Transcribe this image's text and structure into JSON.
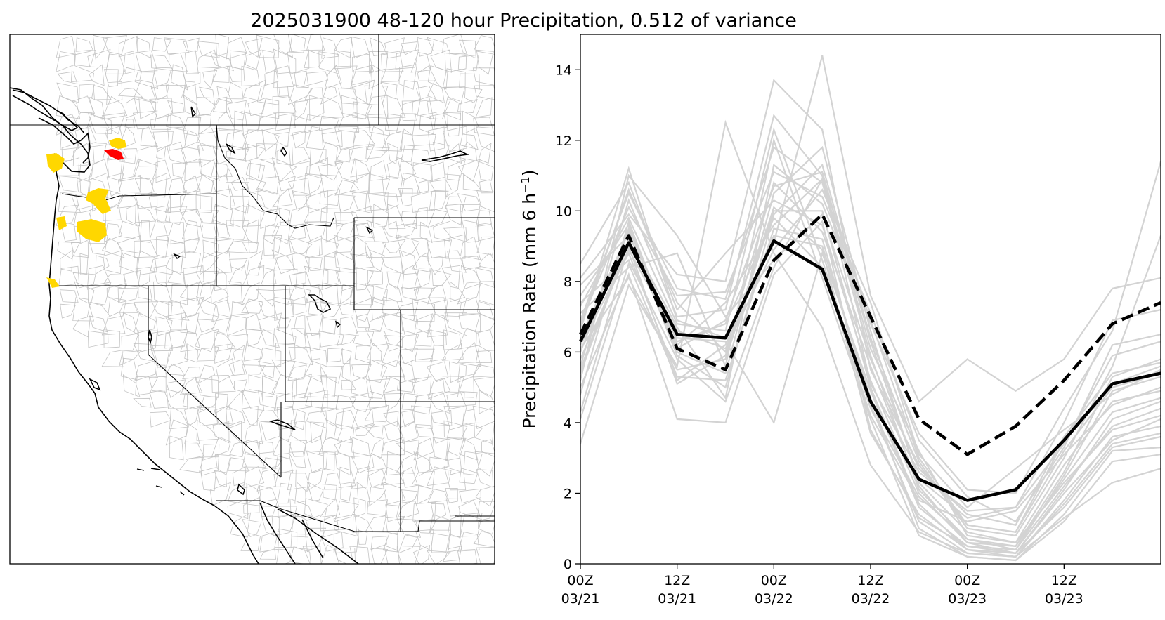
{
  "title": "2025031900 48-120 hour Precipitation, 0.512 of variance",
  "map": {
    "highlight_colors": {
      "gold": "#FFD700",
      "red": "#FF0000"
    }
  },
  "chart_data": {
    "type": "line",
    "ylabel": "Precipitation Rate (mm 6 h",
    "ylabel_superscript": "−1",
    "ylabel_suffix": ")",
    "ylim": [
      0,
      15
    ],
    "xlim": [
      0,
      18
    ],
    "yticks": [
      0,
      2,
      4,
      6,
      8,
      10,
      12,
      14
    ],
    "xticks": [
      {
        "x": 0,
        "line1": "00Z",
        "line2": "03/21"
      },
      {
        "x": 3,
        "line1": "12Z",
        "line2": "03/21"
      },
      {
        "x": 6,
        "line1": "00Z",
        "line2": "03/22"
      },
      {
        "x": 9,
        "line1": "12Z",
        "line2": "03/22"
      },
      {
        "x": 12,
        "line1": "00Z",
        "line2": "03/23"
      },
      {
        "x": 15,
        "line1": "12Z",
        "line2": "03/23"
      }
    ],
    "x": [
      0,
      1.5,
      3,
      4.5,
      6,
      7.5,
      9,
      10.5,
      12,
      13.5,
      15,
      16.5,
      18
    ],
    "series": [
      {
        "style": "solid",
        "color": "#000000",
        "values": [
          6.3,
          9.1,
          6.5,
          6.4,
          9.15,
          8.35,
          4.6,
          2.4,
          1.8,
          2.1,
          3.5,
          5.1,
          5.4
        ]
      },
      {
        "style": "dashed",
        "color": "#000000",
        "values": [
          6.5,
          9.3,
          6.1,
          5.5,
          8.6,
          9.9,
          7.0,
          4.1,
          3.1,
          3.9,
          5.2,
          6.8,
          7.4
        ]
      }
    ],
    "ensemble_color": "#d3d3d3",
    "ensemble": [
      [
        6.0,
        9.5,
        6.3,
        6.8,
        9.8,
        8.4,
        4.2,
        1.8,
        1.2,
        1.5,
        3.1,
        4.5,
        5.0
      ],
      [
        5.6,
        10.3,
        7.0,
        7.2,
        12.7,
        11.0,
        5.1,
        2.6,
        1.5,
        1.6,
        3.4,
        5.9,
        6.3
      ],
      [
        7.4,
        8.6,
        5.8,
        4.6,
        8.4,
        10.9,
        6.1,
        3.2,
        0.8,
        0.6,
        2.3,
        3.8,
        4.2
      ],
      [
        4.3,
        9.0,
        5.1,
        5.9,
        10.1,
        8.9,
        3.7,
        1.4,
        0.4,
        0.3,
        1.6,
        3.3,
        3.6
      ],
      [
        8.1,
        9.9,
        8.2,
        8.0,
        13.7,
        12.3,
        5.5,
        2.8,
        1.1,
        0.9,
        3.5,
        5.1,
        5.6
      ],
      [
        6.6,
        11.2,
        6.9,
        6.4,
        9.1,
        14.4,
        7.6,
        4.6,
        5.8,
        4.9,
        5.8,
        7.8,
        8.1
      ],
      [
        5.0,
        8.2,
        4.1,
        4.0,
        8.2,
        9.7,
        3.8,
        1.3,
        0.5,
        0.4,
        2.2,
        3.9,
        4.4
      ],
      [
        3.4,
        7.9,
        5.6,
        12.5,
        8.8,
        6.7,
        2.8,
        0.9,
        0.3,
        0.2,
        1.3,
        2.3,
        2.7
      ],
      [
        7.9,
        9.3,
        6.7,
        4.7,
        11.3,
        10.2,
        6.8,
        3.7,
        2.1,
        2.0,
        4.4,
        6.6,
        11.4
      ],
      [
        6.9,
        10.5,
        7.8,
        7.5,
        11.8,
        10.8,
        5.9,
        2.1,
        0.7,
        0.4,
        2.5,
        4.9,
        5.3
      ],
      [
        6.2,
        8.8,
        5.3,
        5.2,
        9.5,
        9.2,
        4.5,
        1.2,
        0.3,
        0.2,
        1.8,
        3.6,
        3.9
      ],
      [
        4.8,
        9.7,
        6.1,
        6.9,
        10.7,
        11.1,
        6.3,
        2.4,
        1.3,
        1.6,
        4.0,
        6.9,
        7.2
      ],
      [
        7.1,
        8.4,
        8.8,
        5.6,
        12.0,
        8.1,
        4.1,
        0.8,
        0.2,
        0.1,
        1.4,
        3.2,
        3.3
      ],
      [
        5.4,
        9.1,
        6.6,
        6.1,
        8.9,
        10.6,
        7.4,
        3.1,
        1.6,
        2.7,
        3.8,
        4.8,
        5.5
      ],
      [
        8.5,
        10.8,
        7.2,
        8.8,
        10.3,
        9.6,
        5.2,
        2.0,
        0.6,
        0.5,
        2.6,
        5.3,
        5.8
      ],
      [
        6.4,
        9.4,
        5.9,
        5.0,
        9.9,
        11.3,
        6.4,
        2.9,
        1.0,
        0.8,
        3.0,
        5.6,
        9.3
      ],
      [
        5.8,
        8.9,
        6.4,
        6.3,
        4.0,
        8.8,
        4.9,
        1.6,
        0.5,
        0.3,
        2.0,
        3.5,
        4.1
      ],
      [
        6.8,
        10.1,
        7.6,
        7.7,
        11.1,
        10.4,
        7.1,
        3.5,
        1.9,
        1.2,
        3.3,
        6.2,
        6.5
      ],
      [
        4.1,
        8.5,
        5.2,
        6.2,
        9.3,
        9.0,
        4.7,
        1.0,
        0.2,
        0.1,
        1.2,
        2.9,
        3.1
      ],
      [
        7.6,
        9.6,
        6.0,
        5.4,
        10.5,
        11.8,
        6.6,
        2.3,
        0.9,
        0.6,
        2.8,
        4.6,
        4.9
      ],
      [
        5.2,
        11.0,
        9.3,
        7.0,
        8.6,
        9.9,
        5.8,
        2.7,
        1.4,
        1.1,
        3.6,
        5.4,
        5.7
      ],
      [
        6.1,
        8.1,
        5.5,
        5.8,
        10.0,
        10.0,
        5.0,
        1.7,
        0.4,
        0.2,
        1.7,
        3.4,
        3.7
      ],
      [
        7.3,
        9.8,
        6.8,
        6.6,
        12.3,
        8.6,
        4.4,
        1.9,
        0.7,
        0.5,
        2.4,
        4.3,
        4.7
      ],
      [
        5.5,
        9.2,
        6.2,
        7.4,
        9.6,
        10.9,
        6.9,
        3.0,
        1.1,
        0.9,
        3.2,
        5.0,
        5.4
      ],
      [
        6.7,
        10.6,
        7.4,
        6.0,
        10.8,
        9.4,
        5.6,
        2.2,
        0.6,
        0.3,
        2.1,
        4.1,
        4.6
      ]
    ]
  }
}
